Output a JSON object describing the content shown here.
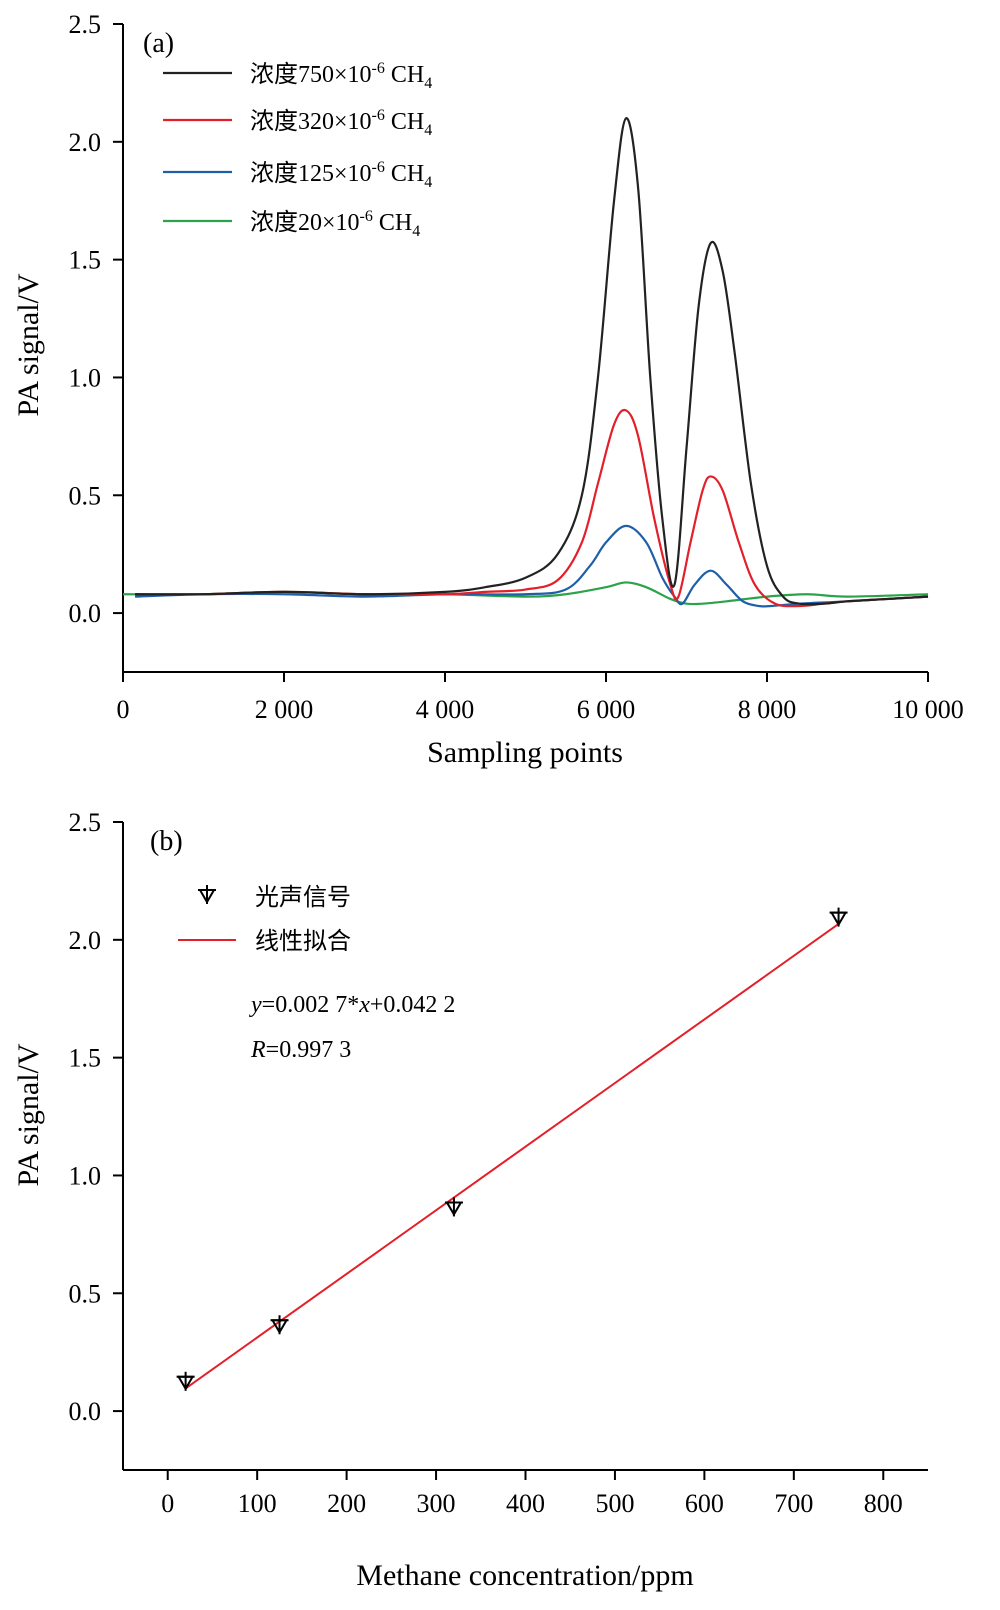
{
  "chart_data": [
    {
      "type": "line",
      "panel_label": "(a)",
      "xlabel": "Sampling points",
      "ylabel": "PA signal/V",
      "xlim": [
        0,
        10000
      ],
      "ylim": [
        -0.25,
        2.5
      ],
      "x_ticks": [
        0,
        2000,
        4000,
        6000,
        8000,
        10000
      ],
      "x_tick_labels": [
        "0",
        "2 000",
        "4 000",
        "6 000",
        "8 000",
        "10 000"
      ],
      "y_ticks": [
        0.0,
        0.5,
        1.0,
        1.5,
        2.0,
        2.5
      ],
      "y_tick_labels": [
        "0.0",
        "0.5",
        "1.0",
        "1.5",
        "2.0",
        "2.5"
      ],
      "grid": false,
      "legend_position": "top-left",
      "series": [
        {
          "name": "浓度750×10-6 CH4",
          "color": "#222222",
          "x": [
            150,
            1000,
            2000,
            3000,
            4000,
            4500,
            5000,
            5400,
            5700,
            5900,
            6100,
            6250,
            6400,
            6550,
            6700,
            6850,
            7000,
            7150,
            7300,
            7450,
            7600,
            7800,
            8000,
            8200,
            8400,
            8700,
            9000,
            9500,
            10000
          ],
          "y": [
            0.08,
            0.08,
            0.09,
            0.08,
            0.09,
            0.11,
            0.15,
            0.25,
            0.5,
            1.0,
            1.75,
            2.1,
            1.8,
            1.0,
            0.4,
            0.12,
            0.7,
            1.3,
            1.57,
            1.45,
            1.1,
            0.55,
            0.2,
            0.07,
            0.04,
            0.04,
            0.05,
            0.06,
            0.07
          ]
        },
        {
          "name": "浓度320×10-6 CH4",
          "color": "#e3202a",
          "x": [
            150,
            1000,
            2000,
            3000,
            4000,
            4500,
            5000,
            5400,
            5700,
            5900,
            6100,
            6250,
            6400,
            6600,
            6800,
            6900,
            7050,
            7200,
            7300,
            7450,
            7650,
            7850,
            8100,
            8400,
            8700,
            9000,
            9500,
            10000
          ],
          "y": [
            0.08,
            0.08,
            0.09,
            0.08,
            0.08,
            0.09,
            0.1,
            0.14,
            0.3,
            0.55,
            0.8,
            0.86,
            0.75,
            0.4,
            0.12,
            0.07,
            0.3,
            0.52,
            0.58,
            0.52,
            0.3,
            0.12,
            0.04,
            0.03,
            0.04,
            0.05,
            0.06,
            0.07
          ]
        },
        {
          "name": "浓度125×10-6 CH4",
          "color": "#1f5fa8",
          "x": [
            150,
            1000,
            2000,
            3000,
            4000,
            5000,
            5500,
            5800,
            6000,
            6250,
            6500,
            6700,
            6850,
            6950,
            7100,
            7300,
            7500,
            7700,
            7900,
            8050,
            8400,
            9000,
            10000
          ],
          "y": [
            0.07,
            0.08,
            0.08,
            0.07,
            0.08,
            0.08,
            0.1,
            0.2,
            0.3,
            0.37,
            0.3,
            0.15,
            0.07,
            0.04,
            0.12,
            0.18,
            0.12,
            0.05,
            0.03,
            0.03,
            0.04,
            0.05,
            0.07
          ]
        },
        {
          "name": "浓度20×10-6 CH4",
          "color": "#2ca24a",
          "x": [
            0,
            1000,
            2000,
            3000,
            4000,
            5000,
            5500,
            6000,
            6250,
            6500,
            6800,
            7000,
            7200,
            7500,
            8000,
            8500,
            9000,
            10000
          ],
          "y": [
            0.08,
            0.08,
            0.09,
            0.08,
            0.08,
            0.07,
            0.08,
            0.11,
            0.13,
            0.11,
            0.06,
            0.04,
            0.04,
            0.05,
            0.07,
            0.08,
            0.07,
            0.08
          ]
        }
      ]
    },
    {
      "type": "scatter",
      "panel_label": "(b)",
      "xlabel": "Methane concentration/ppm",
      "ylabel": "PA signal/V",
      "xlim": [
        -50,
        850
      ],
      "ylim": [
        -0.25,
        2.5
      ],
      "x_ticks": [
        0,
        100,
        200,
        300,
        400,
        500,
        600,
        700,
        800
      ],
      "x_tick_labels": [
        "0",
        "100",
        "200",
        "300",
        "400",
        "500",
        "600",
        "700",
        "800"
      ],
      "y_ticks": [
        0.0,
        0.5,
        1.0,
        1.5,
        2.0,
        2.5
      ],
      "y_tick_labels": [
        "0.0",
        "0.5",
        "1.0",
        "1.5",
        "2.0",
        "2.5"
      ],
      "grid": false,
      "legend_position": "top-left",
      "points": {
        "name": "光声信号",
        "color": "#000000",
        "x": [
          20,
          125,
          320,
          750
        ],
        "y": [
          0.12,
          0.36,
          0.86,
          2.09
        ]
      },
      "fit": {
        "name": "线性拟合",
        "color": "#e3202a",
        "slope": 0.0027,
        "intercept": 0.0422,
        "x_range": [
          20,
          750
        ]
      },
      "annotation": {
        "equation_var_y": "y",
        "equation_mid": "=0.002 7*",
        "equation_var_x": "x",
        "equation_end": "+0.042 2",
        "r_var": "R",
        "r_value": "=0.997 3"
      }
    }
  ]
}
